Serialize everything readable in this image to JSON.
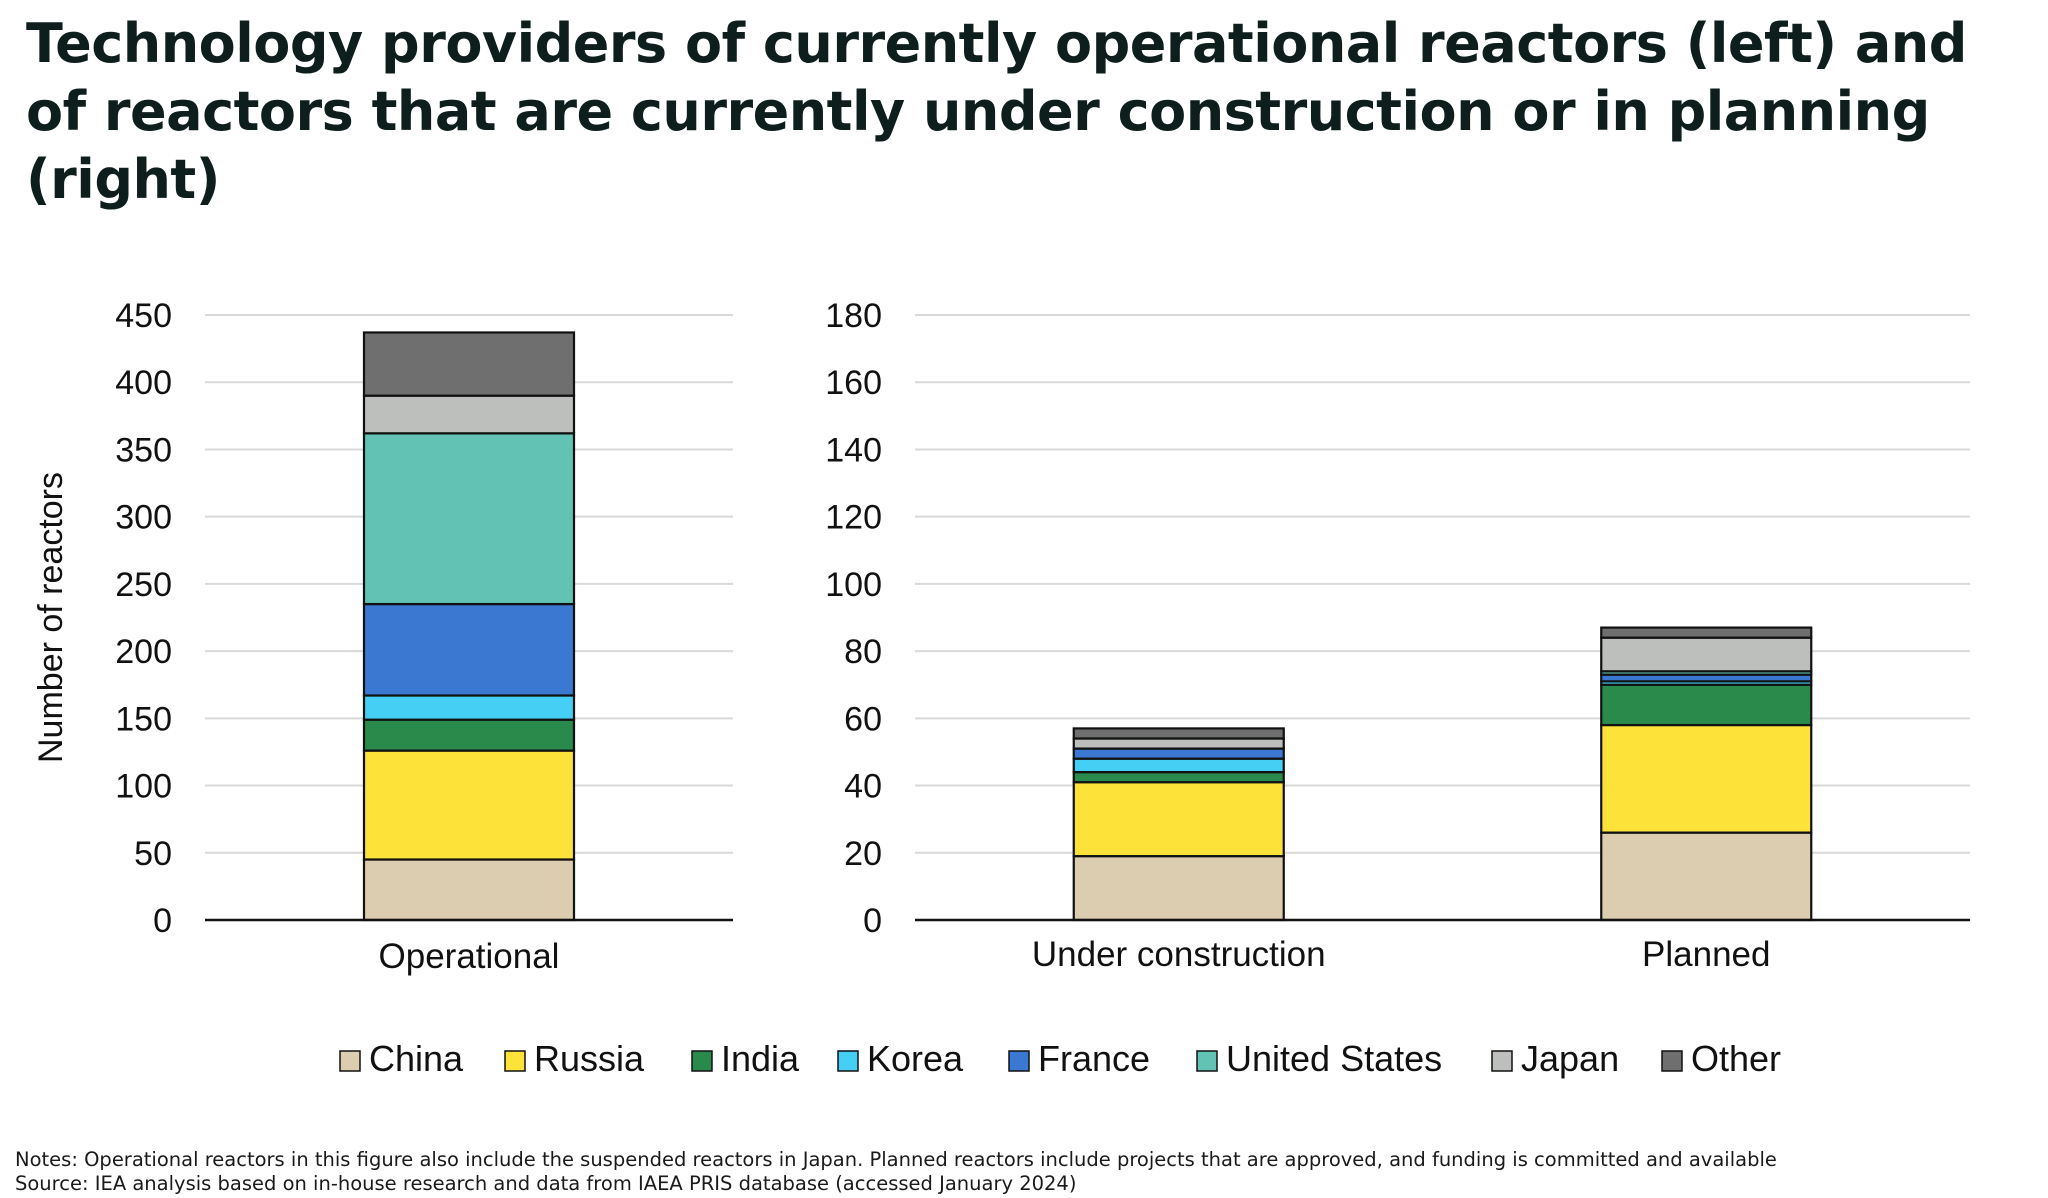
{
  "title": "Technology providers of currently operational reactors (left) and of reactors that are currently under construction or in planning (right)",
  "notes": "Notes: Operational reactors in this figure also include the suspended reactors in Japan. Planned reactors include projects that are approved, and funding is committed and available",
  "source": "Source: IEA analysis based on in-house research and data from IAEA PRIS database (accessed January 2024)",
  "colors": {
    "China": "#ddcdb0",
    "Russia": "#fde23a",
    "India": "#2a8a4c",
    "Korea": "#46cff5",
    "France": "#3b78d2",
    "United States": "#62c2b3",
    "Japan": "#bcbfbb",
    "Other": "#6e6f6e"
  },
  "chart_data": [
    {
      "type": "bar",
      "stacked": true,
      "categories": [
        "Operational"
      ],
      "ylabel": "Number of reactors",
      "ylim": [
        0,
        450
      ],
      "yticks": [
        0,
        50,
        100,
        150,
        200,
        250,
        300,
        350,
        400,
        450
      ],
      "grid": true,
      "series": [
        {
          "name": "China",
          "values": [
            45
          ]
        },
        {
          "name": "Russia",
          "values": [
            81
          ]
        },
        {
          "name": "India",
          "values": [
            23
          ]
        },
        {
          "name": "Korea",
          "values": [
            18
          ]
        },
        {
          "name": "France",
          "values": [
            68
          ]
        },
        {
          "name": "United States",
          "values": [
            127
          ]
        },
        {
          "name": "Japan",
          "values": [
            28
          ]
        },
        {
          "name": "Other",
          "values": [
            47
          ]
        }
      ]
    },
    {
      "type": "bar",
      "stacked": true,
      "categories": [
        "Under construction",
        "Planned"
      ],
      "ylabel": "",
      "ylim": [
        0,
        180
      ],
      "yticks": [
        0,
        20,
        40,
        60,
        80,
        100,
        120,
        140,
        160,
        180
      ],
      "grid": true,
      "series": [
        {
          "name": "China",
          "values": [
            19,
            26
          ]
        },
        {
          "name": "Russia",
          "values": [
            22,
            32
          ]
        },
        {
          "name": "India",
          "values": [
            3,
            12
          ]
        },
        {
          "name": "Korea",
          "values": [
            4,
            1
          ]
        },
        {
          "name": "France",
          "values": [
            3,
            2
          ]
        },
        {
          "name": "United States",
          "values": [
            0,
            1
          ]
        },
        {
          "name": "Japan",
          "values": [
            3,
            10
          ]
        },
        {
          "name": "Other",
          "values": [
            3,
            3
          ]
        }
      ]
    }
  ],
  "legend": [
    "China",
    "Russia",
    "India",
    "Korea",
    "France",
    "United States",
    "Japan",
    "Other"
  ]
}
